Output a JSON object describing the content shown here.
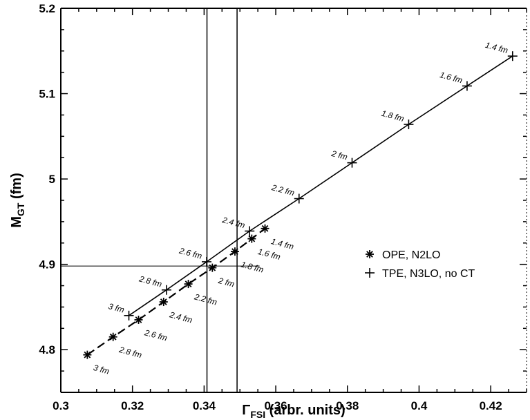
{
  "chart_data": {
    "type": "line",
    "xlabel": {
      "symbol": "Γ",
      "sub": "FSI",
      "rest": " (arbr. units)"
    },
    "ylabel": {
      "main": "M",
      "sub": "GT",
      "rest": " (fm)"
    },
    "xlim": [
      0.3,
      0.43
    ],
    "ylim": [
      4.75,
      5.2
    ],
    "x_ticks": [
      0.3,
      0.32,
      0.34,
      0.36,
      0.38,
      0.4,
      0.42
    ],
    "x_tick_labels": [
      "0.3",
      "0.32",
      "0.34",
      "0.36",
      "0.38",
      "0.4",
      "0.42"
    ],
    "y_ticks": [
      4.8,
      4.9,
      5.0,
      5.1,
      5.2
    ],
    "y_tick_labels": [
      "4.8",
      "4.9",
      "5",
      "5.1",
      "5.2"
    ],
    "grid": false,
    "legend_position": "right",
    "series": [
      {
        "name": "OPE, N2LO",
        "marker": "asterisk",
        "line_style": "dashed",
        "points": [
          {
            "x": 0.3074,
            "y": 4.794,
            "label": "3 fm"
          },
          {
            "x": 0.3146,
            "y": 4.815,
            "label": "2.8 fm"
          },
          {
            "x": 0.3217,
            "y": 4.835,
            "label": "2.6 fm"
          },
          {
            "x": 0.3287,
            "y": 4.856,
            "label": "2.4 fm"
          },
          {
            "x": 0.3356,
            "y": 4.877,
            "label": "2.2 fm"
          },
          {
            "x": 0.3423,
            "y": 4.896,
            "label": "2 fm"
          },
          {
            "x": 0.3486,
            "y": 4.915,
            "label": "1.8 fm"
          },
          {
            "x": 0.3533,
            "y": 4.93,
            "label": "1.6 fm"
          },
          {
            "x": 0.357,
            "y": 4.942,
            "label": "1.4 fm"
          }
        ]
      },
      {
        "name": "TPE, N3LO, no CT",
        "marker": "plus",
        "line_style": "solid",
        "points": [
          {
            "x": 0.319,
            "y": 4.84,
            "label": "3 fm"
          },
          {
            "x": 0.3295,
            "y": 4.87,
            "label": "2.8 fm"
          },
          {
            "x": 0.3407,
            "y": 4.903,
            "label": "2.6 fm"
          },
          {
            "x": 0.3527,
            "y": 4.939,
            "label": "2.4 fm"
          },
          {
            "x": 0.3665,
            "y": 4.977,
            "label": "2.2 fm"
          },
          {
            "x": 0.3813,
            "y": 5.019,
            "label": "2 fm"
          },
          {
            "x": 0.3971,
            "y": 5.064,
            "label": "1.8 fm"
          },
          {
            "x": 0.4134,
            "y": 5.109,
            "label": "1.6 fm"
          },
          {
            "x": 0.4261,
            "y": 5.144,
            "label": "1.4 fm"
          }
        ]
      }
    ],
    "reference_lines": {
      "vertical_x": [
        0.3408,
        0.3492
      ],
      "horizontal": {
        "y": 4.898,
        "x_from": 0.3,
        "x_to": 0.3555
      }
    }
  }
}
